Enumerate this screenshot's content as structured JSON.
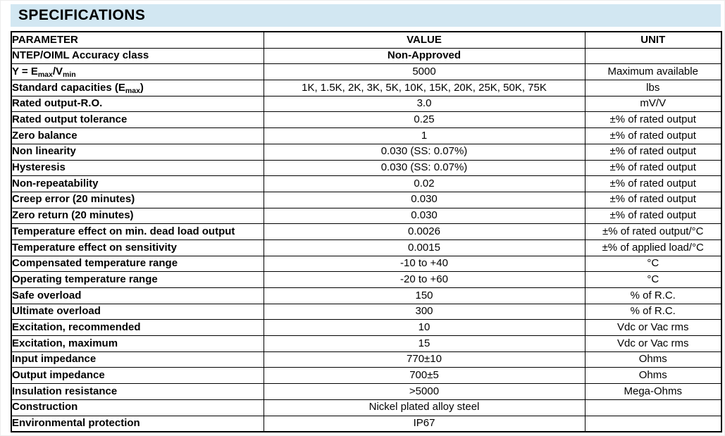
{
  "page": {
    "title": "SPECIFICATIONS"
  },
  "colors": {
    "header_band": "#d2e7f2",
    "table_border": "#000000",
    "text": "#000000"
  },
  "table": {
    "columns": [
      "PARAMETER",
      "VALUE",
      "UNIT"
    ],
    "rows": [
      {
        "param": "NTEP/OIML Accuracy class",
        "value": "Non-Approved",
        "unit": "",
        "value_bold": true
      },
      {
        "param": "Y = E[max]/V[min]",
        "value": "5000",
        "unit": "Maximum available"
      },
      {
        "param": "Standard capacities (E[max])",
        "value": "1K, 1.5K, 2K, 3K, 5K, 10K, 15K, 20K, 25K, 50K, 75K",
        "unit": "lbs"
      },
      {
        "param": "Rated output-R.O.",
        "value": "3.0",
        "unit": "mV/V"
      },
      {
        "param": "Rated output tolerance",
        "value": "0.25",
        "unit": "±% of rated output"
      },
      {
        "param": "Zero balance",
        "value": "1",
        "unit": "±% of rated output"
      },
      {
        "param": "Non linearity",
        "value": "0.030 (SS: 0.07%)",
        "unit": "±% of rated output"
      },
      {
        "param": "Hysteresis",
        "value": "0.030 (SS: 0.07%)",
        "unit": "±% of rated output"
      },
      {
        "param": "Non-repeatability",
        "value": "0.02",
        "unit": "±% of rated output"
      },
      {
        "param": "Creep error (20 minutes)",
        "value": "0.030",
        "unit": "±% of rated output"
      },
      {
        "param": "Zero return (20 minutes)",
        "value": "0.030",
        "unit": "±% of rated output"
      },
      {
        "param": "Temperature effect on min. dead load output",
        "value": "0.0026",
        "unit": "±% of rated output/°C"
      },
      {
        "param": "Temperature effect on sensitivity",
        "value": "0.0015",
        "unit": "±% of applied load/°C"
      },
      {
        "param": "Compensated temperature range",
        "value": "-10 to +40",
        "unit": "°C"
      },
      {
        "param": "Operating temperature range",
        "value": "-20 to +60",
        "unit": "°C"
      },
      {
        "param": "Safe overload",
        "value": "150",
        "unit": "% of R.C."
      },
      {
        "param": "Ultimate overload",
        "value": "300",
        "unit": "% of R.C."
      },
      {
        "param": "Excitation, recommended",
        "value": "10",
        "unit": "Vdc or Vac rms"
      },
      {
        "param": "Excitation, maximum",
        "value": "15",
        "unit": "Vdc or Vac rms"
      },
      {
        "param": "Input impedance",
        "value": "770±10",
        "unit": "Ohms"
      },
      {
        "param": "Output impedance",
        "value": "700±5",
        "unit": "Ohms"
      },
      {
        "param": "Insulation resistance",
        "value": ">5000",
        "unit": "Mega-Ohms"
      },
      {
        "param": "Construction",
        "value": "Nickel plated alloy steel",
        "unit": ""
      },
      {
        "param": "Environmental protection",
        "value": "IP67",
        "unit": ""
      }
    ]
  }
}
